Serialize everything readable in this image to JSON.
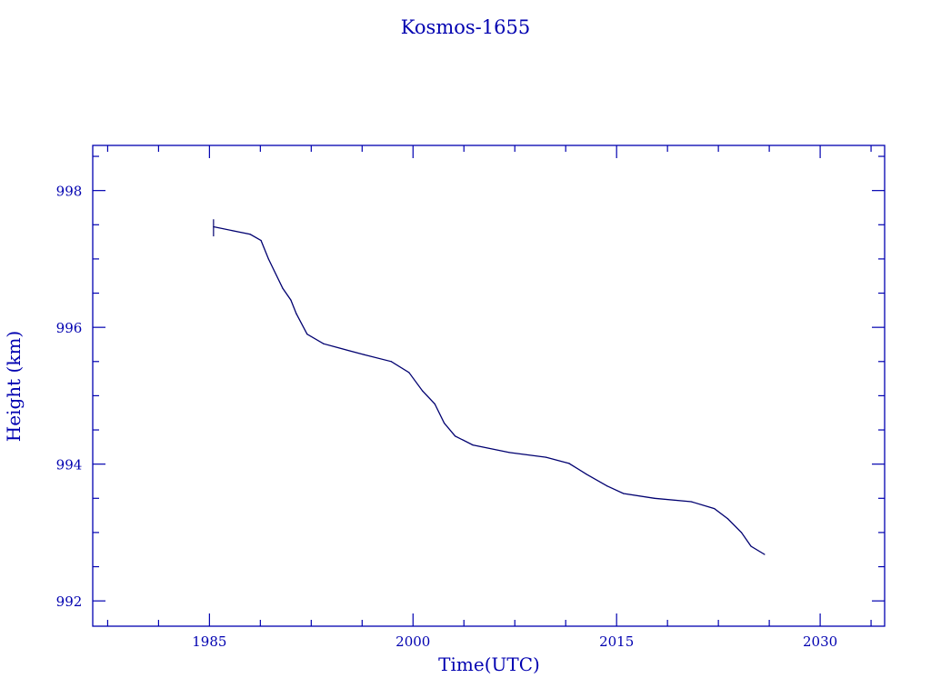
{
  "chart_data": {
    "type": "line",
    "title": "Kosmos-1655",
    "xlabel": "Time(UTC)",
    "ylabel": "Height (km)",
    "xlim": [
      1976.4,
      2034.75
    ],
    "ylim": [
      991.63,
      998.66
    ],
    "x_ticks": [
      1985,
      2000,
      2015,
      2030
    ],
    "x_tick_labels": [
      "1985",
      "2000",
      "2015",
      "2030"
    ],
    "x_minor_step": 3.75,
    "y_ticks": [
      992,
      994,
      996,
      998
    ],
    "y_tick_labels": [
      "992",
      "994",
      "996",
      "998"
    ],
    "y_minor_step": 0.5,
    "grid": false,
    "colors": {
      "axes": "#0000b0",
      "line": "#000070"
    },
    "series": [
      {
        "x": [
          1985.3,
          1988.0,
          1988.8,
          1989.35,
          1990.4,
          1991.0,
          1991.4,
          1992.2,
          1993.4,
          1996.4,
          1998.4,
          1999.7,
          2000.7,
          2001.6,
          2002.3,
          2003.1,
          2004.4,
          2007.1,
          2009.8,
          2011.5,
          2012.8,
          2014.3,
          2015.5,
          2017.8,
          2020.5,
          2022.2,
          2023.2,
          2024.2,
          2024.9,
          2025.9
        ],
        "y": [
          997.47,
          997.36,
          997.27,
          997.0,
          996.57,
          996.4,
          996.2,
          995.9,
          995.76,
          995.6,
          995.5,
          995.34,
          995.07,
          994.88,
          994.6,
          994.41,
          994.28,
          994.17,
          994.1,
          994.01,
          993.85,
          993.68,
          993.57,
          993.5,
          993.45,
          993.35,
          993.2,
          993.0,
          992.8,
          992.68
        ]
      }
    ],
    "start_error_bar": {
      "x": 1985.3,
      "y_low": 997.33,
      "y_high": 997.58
    }
  }
}
